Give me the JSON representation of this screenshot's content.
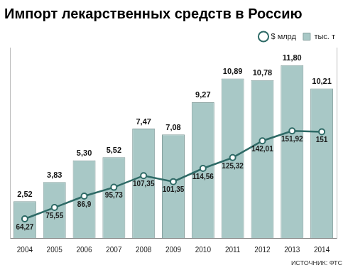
{
  "chart_data": {
    "type": "bar",
    "title": "Импорт лекарственных средств в Россию",
    "source": "ИСТОЧНИК: ФТС",
    "categories": [
      "2004",
      "2005",
      "2006",
      "2007",
      "2008",
      "2009",
      "2010",
      "2011",
      "2012",
      "2013",
      "2014"
    ],
    "series": [
      {
        "name": "тыс. т",
        "type": "bar",
        "color": "#a8c8c6",
        "values": [
          2.52,
          3.83,
          5.3,
          5.52,
          7.47,
          7.08,
          9.27,
          10.89,
          10.78,
          11.8,
          10.21
        ],
        "value_labels": [
          "2,52",
          "3,83",
          "5,30",
          "5,52",
          "7,47",
          "7,08",
          "9,27",
          "10,89",
          "10,78",
          "11,80",
          "10,21"
        ]
      },
      {
        "name": "$ млрд",
        "type": "line",
        "axis": "y2",
        "color": "#2e6a66",
        "marker": "circle",
        "values": [
          64.27,
          75.55,
          86.9,
          95.73,
          107.35,
          101.35,
          114.56,
          125.32,
          142.01,
          151.92,
          151
        ],
        "value_labels": [
          "64,27",
          "75,55",
          "86,9",
          "95,73",
          "107,35",
          "101,35",
          "114,56",
          "125,32",
          "142,01",
          "151,92",
          "151"
        ]
      }
    ],
    "ylim": [
      0,
      13
    ],
    "y2lim": [
      45,
      235
    ],
    "grid": false,
    "legend": "top-right",
    "data_labels": true,
    "tick_labels": "x"
  }
}
